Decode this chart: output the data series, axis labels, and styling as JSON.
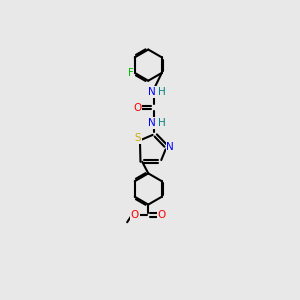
{
  "background_color": "#e8e8e8",
  "bond_color": "#000000",
  "atom_colors": {
    "F": "#00bb00",
    "O": "#ff0000",
    "N": "#0000ff",
    "S": "#ccaa00",
    "C": "#000000",
    "H": "#008080"
  },
  "figsize": [
    3.0,
    3.0
  ],
  "dpi": 100,
  "lw": 1.5,
  "fs": 7.0
}
